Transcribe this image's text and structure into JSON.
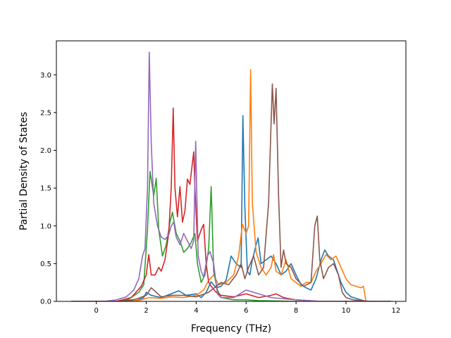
{
  "chart_data": {
    "type": "line",
    "title": "",
    "xlabel": "Frequency (THz)",
    "ylabel": "Partial Density of States",
    "xlim": [
      -1.6,
      12.4
    ],
    "ylim": [
      0,
      3.45
    ],
    "xticks": [
      0,
      2,
      4,
      6,
      8,
      10,
      12
    ],
    "yticks": [
      0.0,
      0.5,
      1.0,
      1.5,
      2.0,
      2.5,
      3.0
    ],
    "xtick_labels": [
      "0",
      "2",
      "4",
      "6",
      "8",
      "10",
      "12"
    ],
    "ytick_labels": [
      "0.0",
      "0.5",
      "1.0",
      "1.5",
      "2.0",
      "2.5",
      "3.0"
    ],
    "grid": false,
    "legend": "none",
    "series": [
      {
        "color": "#1f77b4",
        "points": [
          [
            -1.0,
            0
          ],
          [
            1.0,
            0
          ],
          [
            1.6,
            0.01
          ],
          [
            1.9,
            0.05
          ],
          [
            2.0,
            0.12
          ],
          [
            2.2,
            0.08
          ],
          [
            2.6,
            0.05
          ],
          [
            3.0,
            0.1
          ],
          [
            3.3,
            0.14
          ],
          [
            3.6,
            0.08
          ],
          [
            4.0,
            0.1
          ],
          [
            4.2,
            0.05
          ],
          [
            4.4,
            0.12
          ],
          [
            4.6,
            0.26
          ],
          [
            4.8,
            0.18
          ],
          [
            5.0,
            0.2
          ],
          [
            5.2,
            0.28
          ],
          [
            5.4,
            0.6
          ],
          [
            5.6,
            0.5
          ],
          [
            5.8,
            0.45
          ],
          [
            5.87,
            2.46
          ],
          [
            5.95,
            1.25
          ],
          [
            6.05,
            0.4
          ],
          [
            6.15,
            0.35
          ],
          [
            6.25,
            0.55
          ],
          [
            6.4,
            0.75
          ],
          [
            6.48,
            0.84
          ],
          [
            6.6,
            0.5
          ],
          [
            6.8,
            0.55
          ],
          [
            7.0,
            0.6
          ],
          [
            7.2,
            0.5
          ],
          [
            7.4,
            0.35
          ],
          [
            7.6,
            0.4
          ],
          [
            7.8,
            0.5
          ],
          [
            8.0,
            0.35
          ],
          [
            8.2,
            0.22
          ],
          [
            8.4,
            0.18
          ],
          [
            8.6,
            0.15
          ],
          [
            8.8,
            0.3
          ],
          [
            9.0,
            0.55
          ],
          [
            9.15,
            0.68
          ],
          [
            9.3,
            0.6
          ],
          [
            9.5,
            0.55
          ],
          [
            9.6,
            0.45
          ],
          [
            9.8,
            0.25
          ],
          [
            10.0,
            0.12
          ],
          [
            10.2,
            0.06
          ],
          [
            10.4,
            0.04
          ],
          [
            10.6,
            0.02
          ],
          [
            10.8,
            0.0
          ],
          [
            11.8,
            0.0
          ]
        ]
      },
      {
        "color": "#ff7f0e",
        "points": [
          [
            -1.0,
            0
          ],
          [
            1.4,
            0
          ],
          [
            1.8,
            0.02
          ],
          [
            2.1,
            0.05
          ],
          [
            2.6,
            0.04
          ],
          [
            3.0,
            0.06
          ],
          [
            3.5,
            0.05
          ],
          [
            4.0,
            0.08
          ],
          [
            4.3,
            0.15
          ],
          [
            4.5,
            0.28
          ],
          [
            4.7,
            0.35
          ],
          [
            4.9,
            0.22
          ],
          [
            5.2,
            0.25
          ],
          [
            5.5,
            0.35
          ],
          [
            5.7,
            0.6
          ],
          [
            5.85,
            1.02
          ],
          [
            6.0,
            0.9
          ],
          [
            6.1,
            1.0
          ],
          [
            6.18,
            3.07
          ],
          [
            6.25,
            1.3
          ],
          [
            6.4,
            0.65
          ],
          [
            6.6,
            0.45
          ],
          [
            6.8,
            0.35
          ],
          [
            7.0,
            0.45
          ],
          [
            7.1,
            0.62
          ],
          [
            7.2,
            0.4
          ],
          [
            7.4,
            0.35
          ],
          [
            7.6,
            0.55
          ],
          [
            7.8,
            0.3
          ],
          [
            8.0,
            0.25
          ],
          [
            8.2,
            0.2
          ],
          [
            8.4,
            0.25
          ],
          [
            8.6,
            0.25
          ],
          [
            8.8,
            0.4
          ],
          [
            9.0,
            0.5
          ],
          [
            9.2,
            0.62
          ],
          [
            9.4,
            0.55
          ],
          [
            9.6,
            0.6
          ],
          [
            9.8,
            0.45
          ],
          [
            10.0,
            0.3
          ],
          [
            10.2,
            0.22
          ],
          [
            10.4,
            0.2
          ],
          [
            10.6,
            0.18
          ],
          [
            10.7,
            0.2
          ],
          [
            10.8,
            0.0
          ],
          [
            11.8,
            0.0
          ]
        ]
      },
      {
        "color": "#2ca02c",
        "points": [
          [
            -1.0,
            0
          ],
          [
            0.8,
            0
          ],
          [
            1.3,
            0.03
          ],
          [
            1.7,
            0.12
          ],
          [
            1.9,
            0.22
          ],
          [
            2.05,
            0.95
          ],
          [
            2.15,
            1.72
          ],
          [
            2.3,
            1.4
          ],
          [
            2.4,
            1.63
          ],
          [
            2.5,
            0.95
          ],
          [
            2.65,
            0.6
          ],
          [
            2.8,
            0.75
          ],
          [
            2.95,
            1.05
          ],
          [
            3.05,
            1.18
          ],
          [
            3.2,
            0.9
          ],
          [
            3.35,
            0.8
          ],
          [
            3.5,
            0.65
          ],
          [
            3.65,
            0.7
          ],
          [
            3.8,
            0.78
          ],
          [
            3.95,
            0.9
          ],
          [
            4.05,
            0.5
          ],
          [
            4.2,
            0.25
          ],
          [
            4.35,
            0.35
          ],
          [
            4.5,
            0.7
          ],
          [
            4.6,
            1.52
          ],
          [
            4.7,
            0.4
          ],
          [
            4.85,
            0.15
          ],
          [
            5.0,
            0.05
          ],
          [
            5.5,
            0.02
          ],
          [
            6.0,
            0.02
          ],
          [
            6.5,
            0.01
          ],
          [
            8.0,
            0.0
          ],
          [
            11.8,
            0.0
          ]
        ]
      },
      {
        "color": "#d62728",
        "points": [
          [
            -1.0,
            0
          ],
          [
            0.8,
            0
          ],
          [
            1.4,
            0.05
          ],
          [
            1.8,
            0.2
          ],
          [
            2.0,
            0.35
          ],
          [
            2.1,
            0.62
          ],
          [
            2.2,
            0.35
          ],
          [
            2.35,
            0.35
          ],
          [
            2.5,
            0.45
          ],
          [
            2.6,
            0.4
          ],
          [
            2.75,
            0.55
          ],
          [
            2.9,
            0.9
          ],
          [
            3.0,
            1.5
          ],
          [
            3.08,
            2.56
          ],
          [
            3.15,
            1.5
          ],
          [
            3.25,
            1.12
          ],
          [
            3.35,
            1.52
          ],
          [
            3.45,
            1.05
          ],
          [
            3.55,
            1.2
          ],
          [
            3.65,
            1.62
          ],
          [
            3.75,
            1.55
          ],
          [
            3.9,
            1.98
          ],
          [
            3.95,
            1.5
          ],
          [
            4.05,
            0.8
          ],
          [
            4.2,
            0.95
          ],
          [
            4.3,
            1.02
          ],
          [
            4.4,
            0.5
          ],
          [
            4.5,
            0.25
          ],
          [
            4.6,
            0.2
          ],
          [
            4.8,
            0.12
          ],
          [
            5.0,
            0.08
          ],
          [
            5.5,
            0.06
          ],
          [
            6.0,
            0.1
          ],
          [
            6.2,
            0.08
          ],
          [
            6.5,
            0.05
          ],
          [
            7.0,
            0.08
          ],
          [
            7.2,
            0.1
          ],
          [
            7.5,
            0.05
          ],
          [
            8.0,
            0.02
          ],
          [
            9.0,
            0.0
          ],
          [
            11.8,
            0.0
          ]
        ]
      },
      {
        "color": "#9467bd",
        "points": [
          [
            -1.0,
            0
          ],
          [
            0.3,
            0
          ],
          [
            0.8,
            0.02
          ],
          [
            1.2,
            0.06
          ],
          [
            1.5,
            0.15
          ],
          [
            1.7,
            0.3
          ],
          [
            1.85,
            0.6
          ],
          [
            1.95,
            0.7
          ],
          [
            2.05,
            1.5
          ],
          [
            2.12,
            3.3
          ],
          [
            2.2,
            2.1
          ],
          [
            2.3,
            1.3
          ],
          [
            2.45,
            1.0
          ],
          [
            2.6,
            0.85
          ],
          [
            2.75,
            0.82
          ],
          [
            2.9,
            0.88
          ],
          [
            3.0,
            1.0
          ],
          [
            3.1,
            1.05
          ],
          [
            3.2,
            0.85
          ],
          [
            3.35,
            0.75
          ],
          [
            3.5,
            0.9
          ],
          [
            3.65,
            0.8
          ],
          [
            3.8,
            0.7
          ],
          [
            3.9,
            0.8
          ],
          [
            3.98,
            2.12
          ],
          [
            4.08,
            0.6
          ],
          [
            4.2,
            0.4
          ],
          [
            4.3,
            0.32
          ],
          [
            4.45,
            0.6
          ],
          [
            4.55,
            0.66
          ],
          [
            4.7,
            0.5
          ],
          [
            4.85,
            0.1
          ],
          [
            5.0,
            0.05
          ],
          [
            5.5,
            0.05
          ],
          [
            6.0,
            0.15
          ],
          [
            6.5,
            0.1
          ],
          [
            7.0,
            0.05
          ],
          [
            8.0,
            0.02
          ],
          [
            9.0,
            0.0
          ],
          [
            11.8,
            0.0
          ]
        ]
      },
      {
        "color": "#8c564b",
        "points": [
          [
            -1.0,
            0
          ],
          [
            1.0,
            0
          ],
          [
            1.6,
            0.03
          ],
          [
            2.0,
            0.08
          ],
          [
            2.2,
            0.18
          ],
          [
            2.4,
            0.12
          ],
          [
            2.6,
            0.06
          ],
          [
            3.0,
            0.08
          ],
          [
            3.5,
            0.08
          ],
          [
            4.0,
            0.06
          ],
          [
            4.5,
            0.12
          ],
          [
            4.8,
            0.2
          ],
          [
            5.0,
            0.25
          ],
          [
            5.3,
            0.22
          ],
          [
            5.6,
            0.35
          ],
          [
            5.8,
            0.5
          ],
          [
            5.95,
            0.3
          ],
          [
            6.1,
            0.45
          ],
          [
            6.3,
            0.6
          ],
          [
            6.5,
            0.35
          ],
          [
            6.7,
            0.45
          ],
          [
            6.9,
            1.3
          ],
          [
            7.05,
            2.88
          ],
          [
            7.12,
            2.35
          ],
          [
            7.2,
            2.82
          ],
          [
            7.3,
            1.4
          ],
          [
            7.4,
            0.45
          ],
          [
            7.5,
            0.68
          ],
          [
            7.6,
            0.5
          ],
          [
            7.8,
            0.45
          ],
          [
            8.0,
            0.3
          ],
          [
            8.3,
            0.2
          ],
          [
            8.6,
            0.25
          ],
          [
            8.75,
            1.0
          ],
          [
            8.85,
            1.13
          ],
          [
            8.95,
            0.55
          ],
          [
            9.1,
            0.3
          ],
          [
            9.3,
            0.45
          ],
          [
            9.5,
            0.5
          ],
          [
            9.7,
            0.35
          ],
          [
            9.85,
            0.12
          ],
          [
            10.0,
            0.05
          ],
          [
            10.3,
            0.02
          ],
          [
            10.6,
            0.01
          ],
          [
            11.0,
            0.0
          ],
          [
            11.8,
            0.0
          ]
        ]
      }
    ]
  }
}
